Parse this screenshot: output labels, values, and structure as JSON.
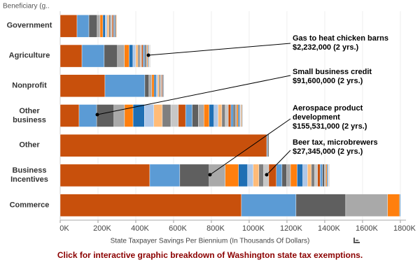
{
  "chart_data": {
    "type": "stacked-bar",
    "header": "Beneficiary (g..",
    "categories": [
      "Government",
      "Agriculture",
      "Nonprofit",
      "Other business",
      "Other",
      "Business Incentives",
      "Commerce"
    ],
    "values": [
      [
        89,
        63,
        44,
        15,
        15,
        12,
        10,
        10,
        9,
        8,
        7,
        6,
        5,
        4,
        3
      ],
      [
        115,
        118,
        70,
        37,
        25,
        20,
        15,
        12,
        10,
        9,
        8,
        8,
        7,
        6,
        5,
        4,
        2.232,
        3,
        2
      ],
      [
        237,
        211,
        22,
        15,
        12,
        10,
        9,
        8,
        7,
        6,
        5,
        4,
        3
      ],
      [
        100,
        93,
        91.6,
        56,
        45,
        60,
        50,
        45,
        45,
        40,
        38,
        35,
        32,
        30,
        28,
        25,
        22,
        20,
        18,
        16,
        14,
        12,
        10,
        9,
        8,
        7,
        6,
        5,
        4,
        3
      ],
      [
        1093,
        5,
        6
      ],
      [
        474,
        159,
        155.531,
        85,
        70,
        48,
        30,
        30,
        25,
        27.345,
        40,
        30,
        25,
        20,
        35,
        30,
        25,
        20,
        18,
        15,
        14,
        12,
        10,
        8,
        6,
        5,
        4,
        3,
        2
      ],
      [
        959,
        289,
        263,
        222,
        63,
        4
      ]
    ],
    "colors": [
      "#c8500c",
      "#5b9bd5",
      "#5f5f5f",
      "#a9a9a9",
      "#ff7f0e",
      "#1f6fb4",
      "#aec7e8",
      "#ffbb78",
      "#7f7f7f",
      "#c7c7c7"
    ],
    "xlim": [
      0,
      1830
    ],
    "xticks": [
      {
        "value": 0,
        "label": "0K"
      },
      {
        "value": 200,
        "label": "200K"
      },
      {
        "value": 400,
        "label": "400K"
      },
      {
        "value": 600,
        "label": "600K"
      },
      {
        "value": 800,
        "label": "800K"
      },
      {
        "value": 1000,
        "label": "1000K"
      },
      {
        "value": 1200,
        "label": "1200K"
      },
      {
        "value": 1400,
        "label": "1400K"
      },
      {
        "value": 1600,
        "label": "1600K"
      },
      {
        "value": 1800,
        "label": "1800K"
      }
    ],
    "xlabel": "State Taxpayer Savings Per Biennium (In Thousands Of Dollars)",
    "annotations": [
      {
        "lines": [
          "Gas to heat chicken barns",
          "$2,232,000 (2 yrs.)"
        ]
      },
      {
        "lines": [
          "Small business credit",
          "$91,600,000 (2 yrs.)"
        ]
      },
      {
        "lines": [
          "Aerospace product",
          "development",
          "$155,531,000 (2 yrs.)"
        ]
      },
      {
        "lines": [
          "Beer tax, microbrewers",
          "$27,345,000 (2 yrs.)"
        ]
      }
    ],
    "footer": "Click for interactive graphic breakdown of Washington state tax exemptions."
  }
}
